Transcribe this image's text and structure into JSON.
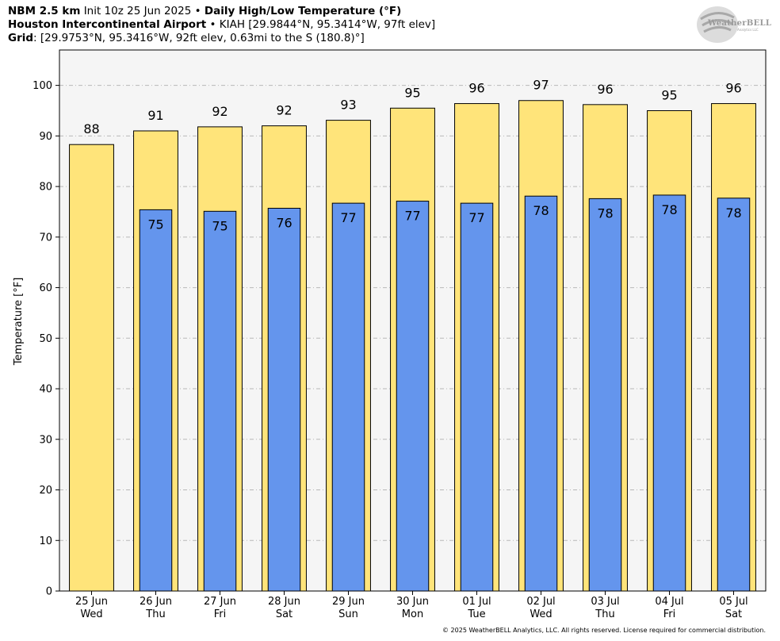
{
  "header": {
    "line1_bold": "NBM 2.5 km",
    "line1_init": "Init 10z 25 Jun 2025",
    "line1_sep": "•",
    "line1_title": "Daily High/Low Temperature (°F)",
    "line2_bold": "Houston Intercontinental Airport",
    "line2_sep": "•",
    "line2_rest": "KIAH [29.9844°N, 95.3414°W, 97ft elev]",
    "line3_bold": "Grid",
    "line3_rest": ": [29.9753°N, 95.3416°W, 92ft elev, 0.63mi to the S (180.8)°]"
  },
  "logo": {
    "text": "WeatherBELL",
    "sub": "Analytics LLC"
  },
  "footer": "© 2025 WeatherBELL Analytics, LLC. All rights reserved. License required for commercial distribution.",
  "chart_data": {
    "type": "bar",
    "ylabel": "Temperature [°F]",
    "xlabel": "",
    "ylim": [
      0,
      107
    ],
    "yticks": [
      0,
      10,
      20,
      30,
      40,
      50,
      60,
      70,
      80,
      90,
      100
    ],
    "grid": true,
    "categories": [
      {
        "date": "25 Jun",
        "day": "Wed"
      },
      {
        "date": "26 Jun",
        "day": "Thu"
      },
      {
        "date": "27 Jun",
        "day": "Fri"
      },
      {
        "date": "28 Jun",
        "day": "Sat"
      },
      {
        "date": "29 Jun",
        "day": "Sun"
      },
      {
        "date": "30 Jun",
        "day": "Mon"
      },
      {
        "date": "01 Jul",
        "day": "Tue"
      },
      {
        "date": "02 Jul",
        "day": "Wed"
      },
      {
        "date": "03 Jul",
        "day": "Thu"
      },
      {
        "date": "04 Jul",
        "day": "Fri"
      },
      {
        "date": "05 Jul",
        "day": "Sat"
      }
    ],
    "series": [
      {
        "role": "high",
        "color": "#ffe47a",
        "values": [
          88.3,
          91.0,
          91.8,
          92.0,
          93.1,
          95.5,
          96.4,
          97.0,
          96.2,
          95.0,
          96.4
        ],
        "labels": [
          "88",
          "91",
          "92",
          "92",
          "93",
          "95",
          "96",
          "97",
          "96",
          "95",
          "96"
        ]
      },
      {
        "role": "low",
        "color": "#6495ed",
        "values": [
          null,
          75.4,
          75.1,
          75.7,
          76.7,
          77.1,
          76.7,
          78.1,
          77.6,
          78.3,
          77.7
        ],
        "labels": [
          "",
          "75",
          "75",
          "76",
          "77",
          "77",
          "77",
          "78",
          "78",
          "78",
          "78"
        ]
      }
    ]
  }
}
